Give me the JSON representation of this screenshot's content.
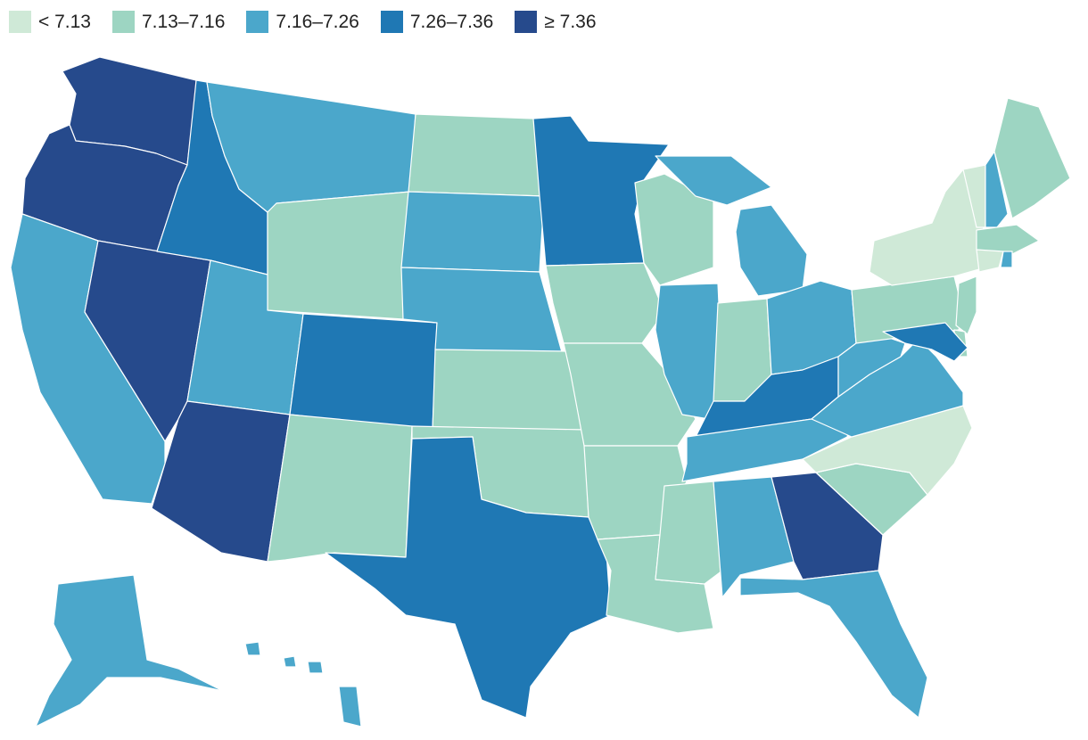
{
  "legend": {
    "items": [
      {
        "label": "< 7.13",
        "color": "#cfe9d7"
      },
      {
        "label": "7.13–7.16",
        "color": "#9dd5c2"
      },
      {
        "label": "7.16–7.26",
        "color": "#4ba7cb"
      },
      {
        "label": "7.26–7.36",
        "color": "#1f78b4"
      },
      {
        "label": "≥ 7.36",
        "color": "#264a8c"
      }
    ]
  },
  "states": [
    {
      "id": "WA",
      "cls": 4
    },
    {
      "id": "OR",
      "cls": 4
    },
    {
      "id": "CA",
      "cls": 2
    },
    {
      "id": "NV",
      "cls": 4
    },
    {
      "id": "ID",
      "cls": 3
    },
    {
      "id": "MT",
      "cls": 2
    },
    {
      "id": "WY",
      "cls": 1
    },
    {
      "id": "UT",
      "cls": 2
    },
    {
      "id": "AZ",
      "cls": 4
    },
    {
      "id": "CO",
      "cls": 3
    },
    {
      "id": "NM",
      "cls": 1
    },
    {
      "id": "ND",
      "cls": 1
    },
    {
      "id": "SD",
      "cls": 2
    },
    {
      "id": "NE",
      "cls": 2
    },
    {
      "id": "KS",
      "cls": 1
    },
    {
      "id": "OK",
      "cls": 1
    },
    {
      "id": "TX",
      "cls": 3
    },
    {
      "id": "MN",
      "cls": 3
    },
    {
      "id": "IA",
      "cls": 1
    },
    {
      "id": "MO",
      "cls": 1
    },
    {
      "id": "AR",
      "cls": 1
    },
    {
      "id": "LA",
      "cls": 1
    },
    {
      "id": "WI",
      "cls": 1
    },
    {
      "id": "IL",
      "cls": 2
    },
    {
      "id": "MI",
      "cls": 2
    },
    {
      "id": "IN",
      "cls": 1
    },
    {
      "id": "OH",
      "cls": 2
    },
    {
      "id": "KY",
      "cls": 3
    },
    {
      "id": "TN",
      "cls": 2
    },
    {
      "id": "MS",
      "cls": 1
    },
    {
      "id": "AL",
      "cls": 2
    },
    {
      "id": "GA",
      "cls": 4
    },
    {
      "id": "FL",
      "cls": 2
    },
    {
      "id": "SC",
      "cls": 1
    },
    {
      "id": "NC",
      "cls": 0
    },
    {
      "id": "VA",
      "cls": 2
    },
    {
      "id": "WV",
      "cls": 2
    },
    {
      "id": "PA",
      "cls": 1
    },
    {
      "id": "NY",
      "cls": 0
    },
    {
      "id": "VT",
      "cls": 0
    },
    {
      "id": "NH",
      "cls": 2
    },
    {
      "id": "ME",
      "cls": 1
    },
    {
      "id": "MA",
      "cls": 1
    },
    {
      "id": "CT",
      "cls": 0
    },
    {
      "id": "RI",
      "cls": 2
    },
    {
      "id": "NJ",
      "cls": 1
    },
    {
      "id": "DE",
      "cls": 1
    },
    {
      "id": "MD",
      "cls": 3
    },
    {
      "id": "AK",
      "cls": 2
    },
    {
      "id": "HI",
      "cls": 2
    }
  ]
}
